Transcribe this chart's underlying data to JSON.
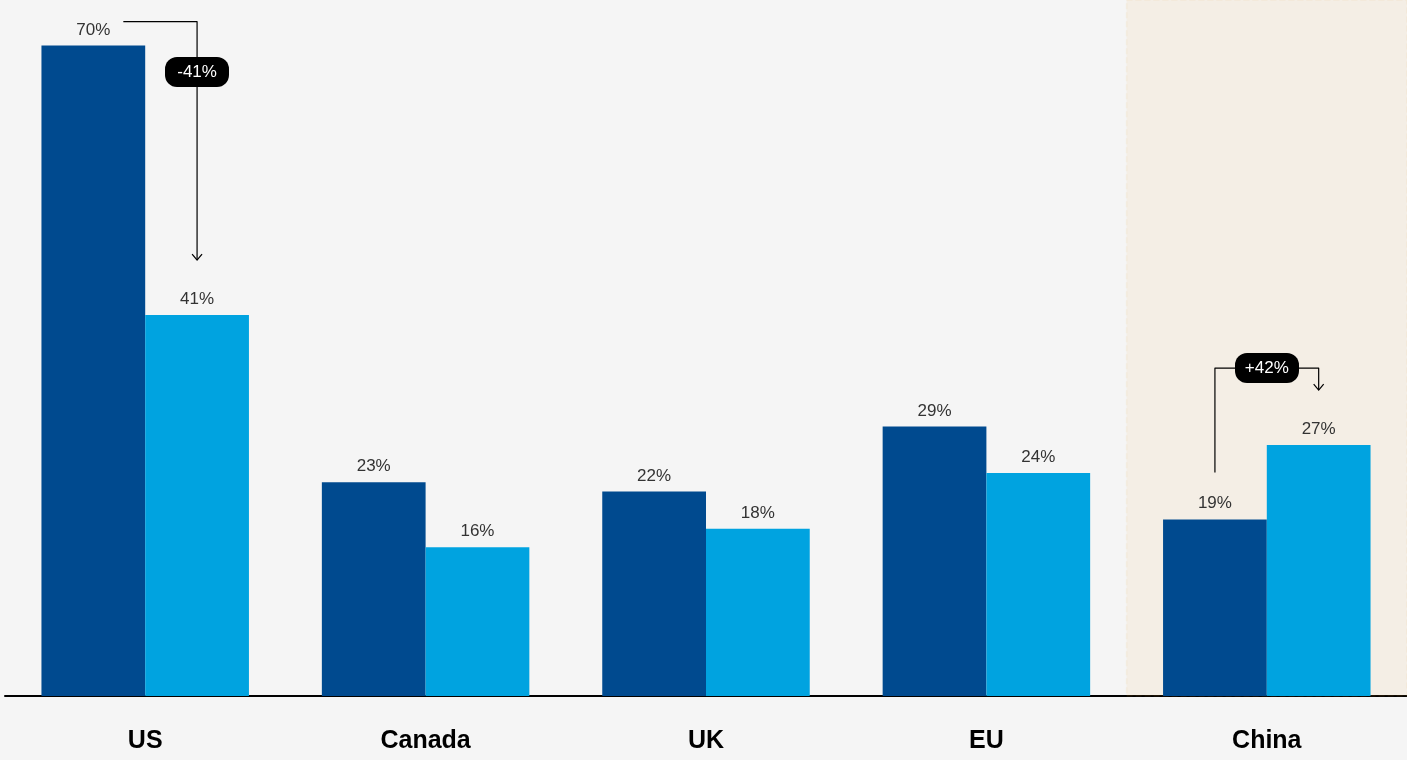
{
  "chart_data": {
    "type": "bar",
    "categories": [
      "US",
      "Canada",
      "UK",
      "EU",
      "China"
    ],
    "series": [
      {
        "color": "#004a8f",
        "values": [
          70,
          23,
          22,
          29,
          19
        ],
        "value_labels": [
          "70%",
          "23%",
          "22%",
          "29%",
          "19%"
        ]
      },
      {
        "color": "#00a3e0",
        "values": [
          41,
          16,
          18,
          24,
          27
        ],
        "value_labels": [
          "41%",
          "16%",
          "18%",
          "24%",
          "27%"
        ]
      }
    ],
    "grid": false,
    "annotations": [
      "-41%",
      "+42%"
    ],
    "bands": [
      {
        "axis": "x",
        "from": "China",
        "to": "China",
        "color": "#f0a030"
      }
    ]
  }
}
